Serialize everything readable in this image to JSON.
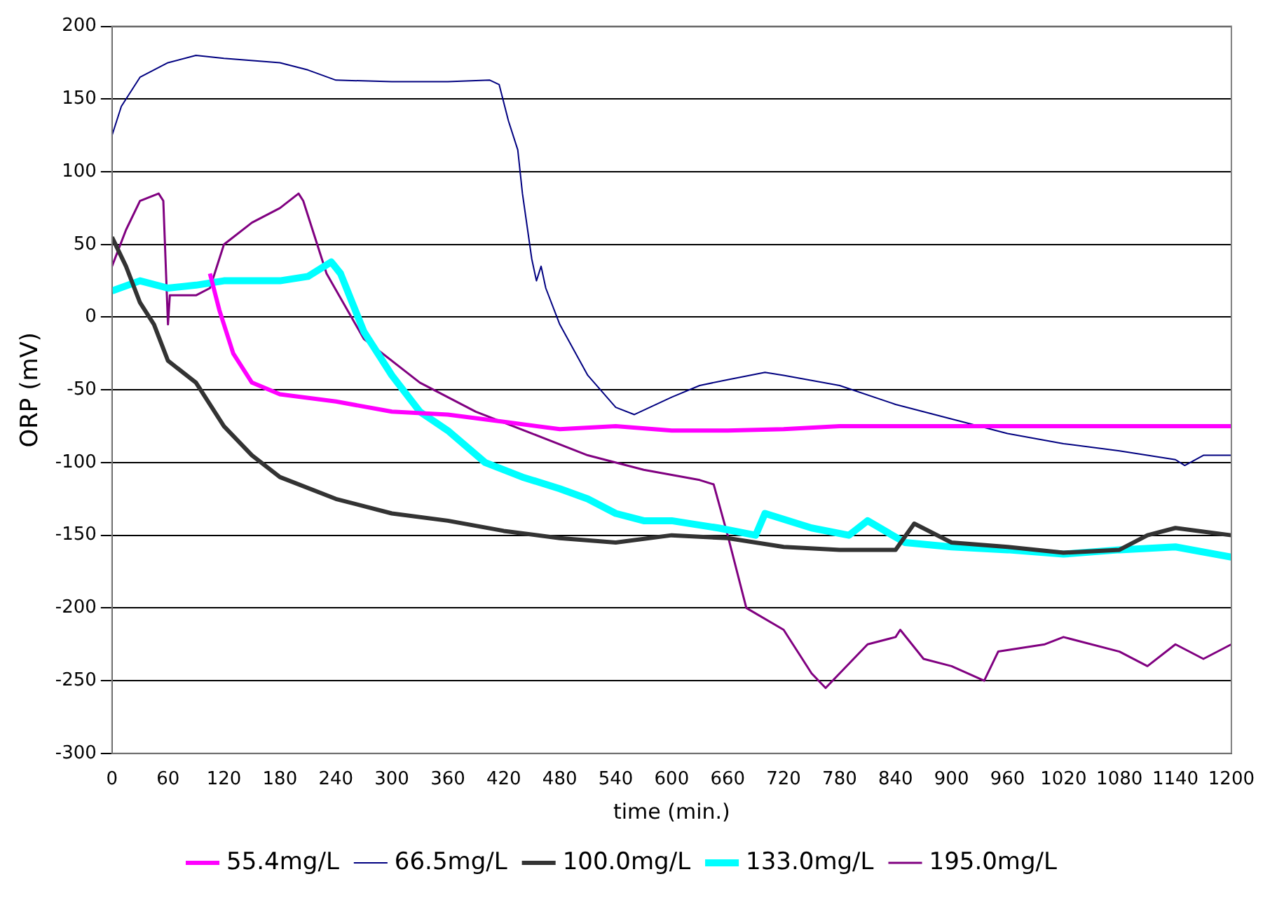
{
  "chart_data": {
    "type": "line",
    "xlabel": "time (min.)",
    "ylabel": "ORP (mV)",
    "xlim": [
      0,
      1200
    ],
    "xticks": [
      0,
      60,
      120,
      180,
      240,
      300,
      360,
      420,
      480,
      540,
      600,
      660,
      720,
      780,
      840,
      900,
      960,
      1020,
      1080,
      1140,
      1200
    ],
    "ylim": [
      -300,
      200
    ],
    "yticks": [
      -300,
      -250,
      -200,
      -150,
      -100,
      -50,
      0,
      50,
      100,
      150,
      200
    ],
    "grid": "y",
    "legend": "bottom",
    "marker": "none",
    "line_style": "solid",
    "series": [
      {
        "name": "55.4mg/L",
        "color": "#ff00ff",
        "x": [
          105,
          115,
          130,
          150,
          180,
          240,
          300,
          360,
          420,
          480,
          540,
          600,
          660,
          720,
          780,
          840,
          900,
          960,
          1020,
          1080,
          1140,
          1200
        ],
        "values": [
          30,
          5,
          -25,
          -45,
          -53,
          -58,
          -65,
          -67,
          -72,
          -77,
          -75,
          -78,
          -78,
          -77,
          -75,
          -75,
          -75,
          -75,
          -75,
          -75,
          -75,
          -75
        ]
      },
      {
        "name": "66.5mg/L",
        "color": "#000080",
        "x": [
          0,
          10,
          30,
          60,
          90,
          120,
          180,
          210,
          240,
          300,
          360,
          405,
          415,
          425,
          435,
          440,
          450,
          455,
          460,
          465,
          480,
          510,
          540,
          560,
          600,
          630,
          660,
          700,
          720,
          780,
          840,
          900,
          960,
          1020,
          1080,
          1140,
          1150,
          1170,
          1200
        ],
        "values": [
          125,
          145,
          165,
          175,
          180,
          178,
          175,
          170,
          163,
          162,
          162,
          163,
          160,
          135,
          115,
          85,
          40,
          25,
          35,
          20,
          -5,
          -40,
          -62,
          -67,
          -55,
          -47,
          -43,
          -38,
          -40,
          -47,
          -60,
          -70,
          -80,
          -87,
          -92,
          -98,
          -102,
          -95,
          -95
        ]
      },
      {
        "name": "100.0mg/L",
        "color": "#333333",
        "x": [
          0,
          15,
          30,
          45,
          60,
          90,
          120,
          150,
          180,
          240,
          300,
          360,
          420,
          480,
          540,
          600,
          660,
          720,
          780,
          840,
          860,
          900,
          960,
          1020,
          1080,
          1110,
          1140,
          1200
        ],
        "values": [
          55,
          35,
          10,
          -5,
          -30,
          -45,
          -75,
          -95,
          -110,
          -125,
          -135,
          -140,
          -147,
          -152,
          -155,
          -150,
          -152,
          -158,
          -160,
          -160,
          -142,
          -155,
          -158,
          -162,
          -160,
          -150,
          -145,
          -150
        ]
      },
      {
        "name": "133.0mg/L",
        "color": "#00ffff",
        "x": [
          0,
          30,
          60,
          90,
          120,
          180,
          210,
          235,
          245,
          270,
          300,
          330,
          360,
          400,
          440,
          480,
          510,
          540,
          570,
          600,
          650,
          690,
          700,
          750,
          790,
          810,
          850,
          900,
          960,
          1020,
          1080,
          1140,
          1200
        ],
        "values": [
          18,
          25,
          20,
          22,
          25,
          25,
          28,
          38,
          30,
          -10,
          -40,
          -65,
          -78,
          -100,
          -110,
          -118,
          -125,
          -135,
          -140,
          -140,
          -145,
          -150,
          -135,
          -145,
          -150,
          -140,
          -155,
          -158,
          -160,
          -163,
          -160,
          -158,
          -165
        ]
      },
      {
        "name": "195.0mg/L",
        "color": "#800080",
        "x": [
          0,
          15,
          30,
          50,
          55,
          60,
          62,
          90,
          105,
          120,
          150,
          180,
          200,
          205,
          230,
          270,
          330,
          390,
          450,
          510,
          570,
          630,
          645,
          660,
          680,
          720,
          750,
          765,
          780,
          810,
          840,
          845,
          870,
          900,
          935,
          950,
          1000,
          1020,
          1080,
          1110,
          1140,
          1170,
          1200
        ],
        "values": [
          35,
          60,
          80,
          85,
          80,
          -5,
          15,
          15,
          20,
          50,
          65,
          75,
          85,
          80,
          30,
          -15,
          -45,
          -65,
          -80,
          -95,
          -105,
          -112,
          -115,
          -150,
          -200,
          -215,
          -245,
          -255,
          -245,
          -225,
          -220,
          -215,
          -235,
          -240,
          -250,
          -230,
          -225,
          -220,
          -230,
          -240,
          -225,
          -235,
          -225
        ]
      }
    ]
  }
}
